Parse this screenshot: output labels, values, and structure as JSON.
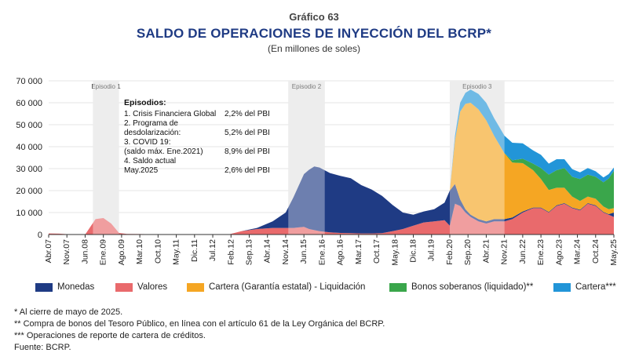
{
  "header": {
    "label": "Gráfico 63",
    "title": "SALDO DE OPERACIONES DE INYECCIÓN DEL BCRP*",
    "subtitle": "(En millones de soles)"
  },
  "episodes_box": {
    "title": "Episodios:",
    "rows": [
      {
        "name": "1. Crisis Financiera Global",
        "value": "2,2% del PBI"
      },
      {
        "name": "2. Programa de",
        "value": ""
      },
      {
        "name": "desdolarización:",
        "value": "5,2% del PBI"
      },
      {
        "name": "3. COVID 19:",
        "value": ""
      },
      {
        "name": "(saldo máx. Ene.2021)",
        "value": "8,9% del PBI"
      },
      {
        "name": "4. Saldo actual",
        "value": ""
      },
      {
        "name": "May.2025",
        "value": "2,6% del PBI"
      }
    ]
  },
  "legend": [
    {
      "name": "Monedas",
      "color": "#1f3b84"
    },
    {
      "name": "Valores",
      "color": "#e96a6c"
    },
    {
      "name": "Cartera (Garantía estatal) - Liquidación",
      "color": "#f5a623"
    },
    {
      "name": "Bonos soberanos (liquidado)**",
      "color": "#3aa64b"
    },
    {
      "name": "Cartera***",
      "color": "#2295d8"
    }
  ],
  "notes": [
    "* Al cierre de mayo de 2025.",
    "** Compra de bonos del Tesoro Público, en línea con el artículo 61 de la Ley Orgánica del BCRP.",
    "*** Operaciones de reporte de cartera de créditos.",
    "Fuente: BCRP."
  ],
  "chart_data": {
    "type": "area",
    "stacked": true,
    "ylim": [
      0,
      70000
    ],
    "yticks": [
      "0",
      "10 000",
      "20 000",
      "30 000",
      "40 000",
      "50 000",
      "60 000",
      "70 000"
    ],
    "x_start": "Abr.07",
    "x_end": "May.25",
    "xtick_labels": [
      "Abr.07",
      "Nov.07",
      "Jun.08",
      "Ene.09",
      "Ago.09",
      "Mar.10",
      "Oct.10",
      "May.11",
      "Dic.11",
      "Jul.12",
      "Feb.12",
      "Sep.13",
      "Abr.14",
      "Nov.14",
      "Jun.15",
      "Ene.16",
      "Ago.16",
      "Mar.17",
      "Oct.17",
      "May.18",
      "Dic.18",
      "Jul.19",
      "Feb.20",
      "Sep.20",
      "Abr.21",
      "Nov.21",
      "Jun.22",
      "Ene.23",
      "Ago.23",
      "Mar.24",
      "Oct.24",
      "May.25"
    ],
    "episodes": [
      {
        "label": "Episodio 1",
        "start": "Sep.08",
        "end": "Jul.09"
      },
      {
        "label": "Episodio 2",
        "start": "Dic.14",
        "end": "Feb.16"
      },
      {
        "label": "Episodio 3",
        "start": "Feb.20",
        "end": "Nov.21"
      }
    ],
    "x": [
      "Abr.07",
      "Ago.07",
      "Ene.08",
      "Jun.08",
      "Oct.08",
      "Ene.09",
      "Abr.09",
      "Jul.09",
      "Oct.09",
      "Mar.10",
      "Ene.11",
      "Ene.12",
      "Ene.13",
      "Jun.13",
      "Dic.13",
      "Jun.14",
      "Nov.14",
      "Feb.15",
      "Jun.15",
      "Ago.15",
      "Oct.15",
      "Dic.15",
      "Abr.16",
      "Ago.16",
      "Dic.16",
      "Abr.17",
      "Ago.17",
      "Dic.17",
      "Abr.18",
      "Ago.18",
      "Dic.18",
      "Abr.19",
      "Ago.19",
      "Dic.19",
      "Feb.20",
      "Abr.20",
      "Jun.20",
      "Ago.20",
      "Oct.20",
      "Ene.21",
      "Abr.21",
      "Jul.21",
      "Nov.21",
      "Feb.22",
      "Jun.22",
      "Oct.22",
      "Ene.23",
      "Abr.23",
      "Jul.23",
      "Oct.23",
      "Ene.24",
      "Abr.24",
      "Jul.24",
      "Oct.24",
      "Ene.25",
      "Mar.25",
      "May.25"
    ],
    "series": [
      {
        "name": "Valores",
        "values": [
          500,
          400,
          0,
          0,
          7000,
          7500,
          5000,
          700,
          300,
          200,
          0,
          0,
          0,
          1500,
          2500,
          3000,
          3000,
          3000,
          3500,
          2500,
          2000,
          1500,
          1000,
          700,
          600,
          500,
          500,
          600,
          1500,
          2500,
          4000,
          5500,
          6000,
          6500,
          4000,
          14000,
          13000,
          10000,
          8000,
          6000,
          5000,
          6000,
          6000,
          7000,
          10000,
          12000,
          12000,
          10000,
          13000,
          14000,
          12000,
          11000,
          14000,
          13000,
          10000,
          9000,
          8000
        ]
      },
      {
        "name": "Monedas",
        "values": [
          0,
          0,
          0,
          0,
          0,
          0,
          0,
          0,
          0,
          0,
          0,
          0,
          0,
          0,
          500,
          3000,
          7000,
          14000,
          24000,
          27000,
          29000,
          29000,
          27000,
          26000,
          25000,
          22000,
          20000,
          17000,
          12000,
          7500,
          5000,
          5000,
          5500,
          8000,
          16000,
          9000,
          3000,
          1500,
          1000,
          1000,
          1000,
          1000,
          1000,
          800,
          500,
          300,
          300,
          300,
          300,
          300,
          300,
          300,
          300,
          300,
          300,
          300,
          2000
        ]
      },
      {
        "name": "Cartera (Garantía estatal) - Liquidación",
        "values": [
          0,
          0,
          0,
          0,
          0,
          0,
          0,
          0,
          0,
          0,
          0,
          0,
          0,
          0,
          0,
          0,
          0,
          0,
          0,
          0,
          0,
          0,
          0,
          0,
          0,
          0,
          0,
          0,
          0,
          0,
          0,
          0,
          0,
          0,
          0,
          20000,
          40000,
          48000,
          51000,
          50000,
          46000,
          38000,
          30000,
          25000,
          22000,
          17000,
          13000,
          10000,
          8000,
          7000,
          5000,
          4000,
          3000,
          3000,
          2500,
          2200,
          2000
        ]
      },
      {
        "name": "Bonos soberanos (liquidado)**",
        "values": [
          0,
          0,
          0,
          0,
          0,
          0,
          0,
          0,
          0,
          0,
          0,
          0,
          0,
          0,
          0,
          0,
          0,
          0,
          0,
          0,
          0,
          0,
          0,
          0,
          0,
          0,
          0,
          0,
          0,
          0,
          0,
          0,
          0,
          0,
          0,
          0,
          0,
          0,
          0,
          0,
          0,
          0,
          0,
          1000,
          2000,
          3000,
          5000,
          7000,
          8000,
          9000,
          9000,
          10000,
          10000,
          10000,
          11000,
          14000,
          17000
        ]
      },
      {
        "name": "Cartera***",
        "values": [
          0,
          0,
          0,
          0,
          0,
          0,
          0,
          0,
          0,
          0,
          0,
          0,
          0,
          0,
          0,
          0,
          0,
          0,
          0,
          0,
          0,
          0,
          0,
          0,
          0,
          0,
          0,
          0,
          0,
          0,
          0,
          0,
          0,
          0,
          0,
          2000,
          4000,
          5000,
          6000,
          7000,
          8000,
          8000,
          8000,
          8000,
          7000,
          6000,
          6000,
          5000,
          5000,
          4000,
          3500,
          3000,
          3000,
          2500,
          2200,
          2000,
          1500
        ]
      }
    ]
  }
}
